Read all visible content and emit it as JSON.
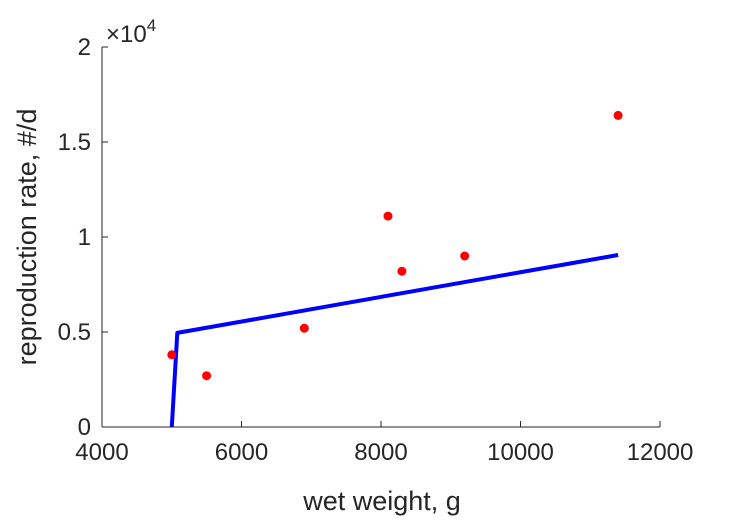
{
  "chart_data": {
    "type": "line",
    "title": "",
    "xlabel": "wet weight, g",
    "ylabel": "reproduction rate, #/d",
    "xlim": [
      4000,
      12000
    ],
    "ylim": [
      0,
      20000
    ],
    "x_ticks": [
      4000,
      6000,
      8000,
      10000,
      12000
    ],
    "x_tick_labels": [
      "4000",
      "6000",
      "8000",
      "10000",
      "12000"
    ],
    "y_ticks": [
      0,
      5000,
      10000,
      15000,
      20000
    ],
    "y_tick_labels": [
      "0",
      "0.5",
      "1",
      "1.5",
      "2"
    ],
    "y_exponent_base": "×10",
    "y_exponent_power": "4",
    "grid": false,
    "box": false,
    "series": [
      {
        "kind": "scatter",
        "color": "#ff0000",
        "x": [
          5000,
          5500,
          6900,
          8100,
          8300,
          9200,
          11400
        ],
        "y": [
          3800,
          2700,
          5200,
          11100,
          8200,
          9000,
          16400
        ]
      },
      {
        "kind": "line",
        "color": "#0000ff",
        "x": [
          5000,
          5080,
          11400
        ],
        "y": [
          0,
          4950,
          9050
        ]
      }
    ]
  }
}
